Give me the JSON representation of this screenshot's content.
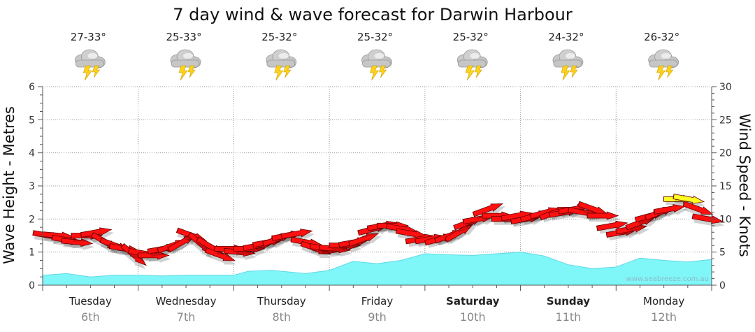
{
  "title": "7 day wind & wave forecast for Darwin Harbour",
  "watermark": "www.seabreeze.com.au",
  "colors": {
    "wave_fill": "#7ff6f8",
    "wave_stroke": "#5fd8e6",
    "wind_strong": "#ff1010",
    "wind_light": "#ffff22",
    "grid": "#9a9a9a"
  },
  "days": [
    {
      "name": "Tuesday",
      "date": "6th",
      "temp": "27-33°",
      "bold": false,
      "icon": "thunderstorm-icon"
    },
    {
      "name": "Wednesday",
      "date": "7th",
      "temp": "25-33°",
      "bold": false,
      "icon": "thunderstorm-icon"
    },
    {
      "name": "Thursday",
      "date": "8th",
      "temp": "25-32°",
      "bold": false,
      "icon": "thunderstorm-icon"
    },
    {
      "name": "Friday",
      "date": "9th",
      "temp": "25-32°",
      "bold": false,
      "icon": "thunderstorm-icon"
    },
    {
      "name": "Saturday",
      "date": "10th",
      "temp": "25-32°",
      "bold": true,
      "icon": "thunderstorm-icon"
    },
    {
      "name": "Sunday",
      "date": "11th",
      "temp": "24-32°",
      "bold": true,
      "icon": "thunderstorm-icon"
    },
    {
      "name": "Monday",
      "date": "12th",
      "temp": "26-32°",
      "bold": false,
      "icon": "thunderstorm-icon"
    }
  ],
  "chart_data": {
    "type": "area",
    "title": "7 day wind & wave forecast for Darwin Harbour",
    "ylabel": "Wave Height - Metres",
    "y2label": "Wind Speed - Knots",
    "ylim": [
      0,
      6
    ],
    "y2lim": [
      0,
      30
    ],
    "yticks": [
      0,
      1,
      2,
      3,
      4,
      5,
      6
    ],
    "y2ticks": [
      0,
      5,
      10,
      15,
      20,
      25,
      30
    ],
    "grid": true,
    "x_unit": "days from start of Tuesday 6th",
    "wave_height_series": {
      "name": "Wave Height",
      "x": [
        0,
        0.25,
        0.5,
        0.75,
        1.0,
        1.25,
        1.5,
        1.75,
        2.0,
        2.15,
        2.4,
        2.75,
        3.0,
        3.25,
        3.5,
        3.75,
        4.0,
        4.25,
        4.5,
        4.75,
        5.0,
        5.25,
        5.5,
        5.75,
        6.0,
        6.25,
        6.5,
        6.75,
        7.0
      ],
      "values": [
        0.3,
        0.35,
        0.25,
        0.3,
        0.3,
        0.28,
        0.3,
        0.3,
        0.3,
        0.42,
        0.45,
        0.35,
        0.45,
        0.72,
        0.65,
        0.75,
        0.95,
        0.92,
        0.9,
        0.95,
        1.0,
        0.88,
        0.62,
        0.5,
        0.55,
        0.82,
        0.75,
        0.7,
        0.78
      ]
    },
    "wind_series": {
      "name": "Wind",
      "x": [
        0,
        0.1,
        0.2,
        0.3,
        0.4,
        0.5,
        0.6,
        0.7,
        0.8,
        0.9,
        1.0,
        1.1,
        1.2,
        1.3,
        1.4,
        1.5,
        1.6,
        1.7,
        1.8,
        1.9,
        2.0,
        2.1,
        2.2,
        2.3,
        2.4,
        2.5,
        2.6,
        2.7,
        2.8,
        2.9,
        3.0,
        3.1,
        3.2,
        3.3,
        3.4,
        3.5,
        3.6,
        3.7,
        3.8,
        3.9,
        4.0,
        4.1,
        4.2,
        4.3,
        4.4,
        4.5,
        4.6,
        4.7,
        4.8,
        4.9,
        5.0,
        5.1,
        5.2,
        5.3,
        5.4,
        5.5,
        5.6,
        5.7,
        5.8,
        5.9,
        6.0,
        6.1,
        6.2,
        6.3,
        6.4,
        6.5,
        6.6,
        6.7,
        6.8,
        6.9
      ],
      "speed_knots": [
        7.5,
        7.5,
        6.8,
        6.5,
        7.5,
        8,
        6.5,
        6,
        5.5,
        4.5,
        4.8,
        4.5,
        5.5,
        6,
        6.5,
        7.5,
        6.2,
        5.8,
        4.5,
        5.5,
        5.0,
        5.5,
        6.0,
        6.5,
        7.0,
        7.5,
        7.8,
        6.5,
        5.5,
        5.5,
        5.5,
        6.0,
        6.5,
        7.0,
        8.5,
        9.0,
        9.0,
        8.5,
        7.8,
        7.0,
        7.0,
        7.0,
        7.5,
        8.0,
        9.5,
        10.0,
        11.5,
        10.5,
        10.0,
        10.5,
        10.0,
        10.5,
        11.0,
        11.0,
        11.0,
        11.5,
        11.0,
        11.5,
        10.5,
        9.0,
        8.0,
        8.5,
        9.5,
        10.5,
        11.0,
        11.5,
        13.0,
        13.0,
        11.5,
        10.0
      ],
      "direction_deg": [
        100,
        95,
        100,
        95,
        90,
        80,
        120,
        110,
        100,
        130,
        100,
        90,
        80,
        70,
        60,
        110,
        130,
        120,
        110,
        90,
        95,
        90,
        80,
        80,
        70,
        80,
        80,
        100,
        110,
        100,
        95,
        90,
        80,
        70,
        75,
        80,
        90,
        100,
        100,
        80,
        80,
        75,
        70,
        60,
        70,
        80,
        70,
        90,
        90,
        80,
        80,
        75,
        75,
        70,
        80,
        80,
        100,
        110,
        90,
        80,
        80,
        80,
        70,
        75,
        70,
        80,
        90,
        100,
        110,
        100
      ],
      "colour_threshold_knots": 12
    }
  }
}
